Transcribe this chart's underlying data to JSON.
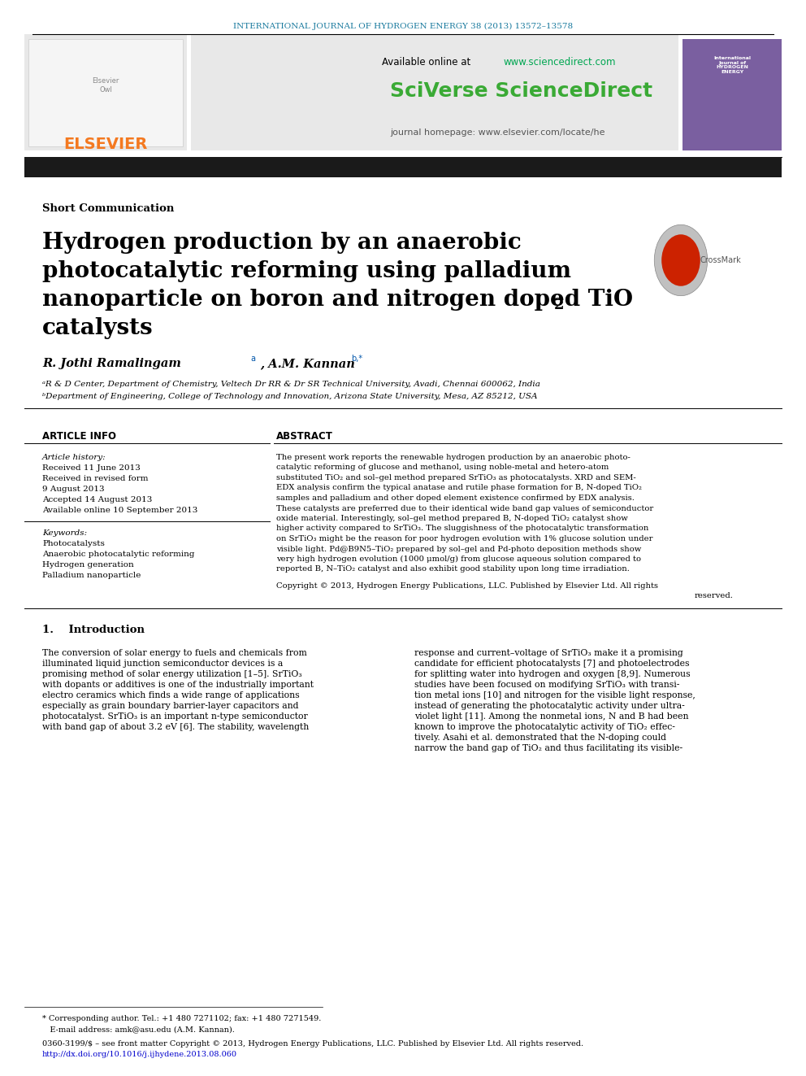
{
  "journal_header": "INTERNATIONAL JOURNAL OF HYDROGEN ENERGY 38 (2013) 13572–13578",
  "journal_header_color": "#1a7a9e",
  "available_online": "Available online at ",
  "sciencedirect_url": "www.sciencedirect.com",
  "sciencedirect_url_color": "#00a651",
  "sciverse_text": "SciVerse ScienceDirect",
  "sciverse_color": "#3aaa35",
  "journal_homepage": "journal homepage: www.elsevier.com/locate/he",
  "section_label": "Short Communication",
  "title_line1": "Hydrogen production by an anaerobic",
  "title_line2": "photocatalytic reforming using palladium",
  "title_line3": "nanoparticle on boron and nitrogen doped TiO",
  "title_line3_sub": "2",
  "title_line4": "catalysts",
  "author_line": "R. Jothi Ramalingam",
  "author_sup_a": "a",
  "author2": ", A.M. Kannan",
  "author2_sup": "b,*",
  "affil_a": "ᵃR & D Center, Department of Chemistry, Veltech Dr RR & Dr SR Technical University, Avadi, Chennai 600062, India",
  "affil_b": "ᵇDepartment of Engineering, College of Technology and Innovation, Arizona State University, Mesa, AZ 85212, USA",
  "article_info_header": "ARTICLE INFO",
  "abstract_header": "ABSTRACT",
  "article_history": "Article history:",
  "received1": "Received 11 June 2013",
  "received2": "Received in revised form",
  "date2": "9 August 2013",
  "accepted": "Accepted 14 August 2013",
  "available_online2": "Available online 10 September 2013",
  "keywords_header": "Keywords:",
  "kw1": "Photocatalysts",
  "kw2": "Anaerobic photocatalytic reforming",
  "kw3": "Hydrogen generation",
  "kw4": "Palladium nanoparticle",
  "abstract_lines": [
    "The present work reports the renewable hydrogen production by an anaerobic photo-",
    "catalytic reforming of glucose and methanol, using noble-metal and hetero-atom",
    "substituted TiO₂ and sol–gel method prepared SrTiO₃ as photocatalysts. XRD and SEM-",
    "EDX analysis confirm the typical anatase and rutile phase formation for B, N-doped TiO₂",
    "samples and palladium and other doped element existence confirmed by EDX analysis.",
    "These catalysts are preferred due to their identical wide band gap values of semiconductor",
    "oxide material. Interestingly, sol–gel method prepared B, N-doped TiO₂ catalyst show",
    "higher activity compared to SrTiO₃. The sluggishness of the photocatalytic transformation",
    "on SrTiO₃ might be the reason for poor hydrogen evolution with 1% glucose solution under",
    "visible light. Pd@B9N5–TiO₂ prepared by sol–gel and Pd-photo deposition methods show",
    "very high hydrogen evolution (1000 μmol/g) from glucose aqueous solution compared to",
    "reported B, N–TiO₂ catalyst and also exhibit good stability upon long time irradiation."
  ],
  "copyright_line1": "Copyright © 2013, Hydrogen Energy Publications, LLC. Published by Elsevier Ltd. All rights",
  "copyright_line2": "reserved.",
  "intro_header": "1.    Introduction",
  "intro1_lines": [
    "The conversion of solar energy to fuels and chemicals from",
    "illuminated liquid junction semiconductor devices is a",
    "promising method of solar energy utilization [1–5]. SrTiO₃",
    "with dopants or additives is one of the industrially important",
    "electro ceramics which finds a wide range of applications",
    "especially as grain boundary barrier-layer capacitors and",
    "photocatalyst. SrTiO₃ is an important n-type semiconductor",
    "with band gap of about 3.2 eV [6]. The stability, wavelength"
  ],
  "intro2_lines": [
    "response and current–voltage of SrTiO₃ make it a promising",
    "candidate for efficient photocatalysts [7] and photoelectrodes",
    "for splitting water into hydrogen and oxygen [8,9]. Numerous",
    "studies have been focused on modifying SrTiO₃ with transi-",
    "tion metal ions [10] and nitrogen for the visible light response,",
    "instead of generating the photocatalytic activity under ultra-",
    "violet light [11]. Among the nonmetal ions, N and B had been",
    "known to improve the photocatalytic activity of TiO₂ effec-",
    "tively. Asahi et al. demonstrated that the N-doping could",
    "narrow the band gap of TiO₂ and thus facilitating its visible-"
  ],
  "footnote_star": "* Corresponding author. Tel.: +1 480 7271102; fax: +1 480 7271549.",
  "footnote_email": "   E-mail address: amk@asu.edu (A.M. Kannan).",
  "footnote_issn": "0360-3199/$ – see front matter Copyright © 2013, Hydrogen Energy Publications, LLC. Published by Elsevier Ltd. All rights reserved.",
  "footnote_doi": "http://dx.doi.org/10.1016/j.ijhydene.2013.08.060",
  "doi_color": "#0000cc",
  "bg_color": "#ffffff",
  "black_bar_color": "#1a1a1a",
  "elsevier_orange": "#f47920",
  "page_width": 9.92,
  "page_height": 13.23
}
